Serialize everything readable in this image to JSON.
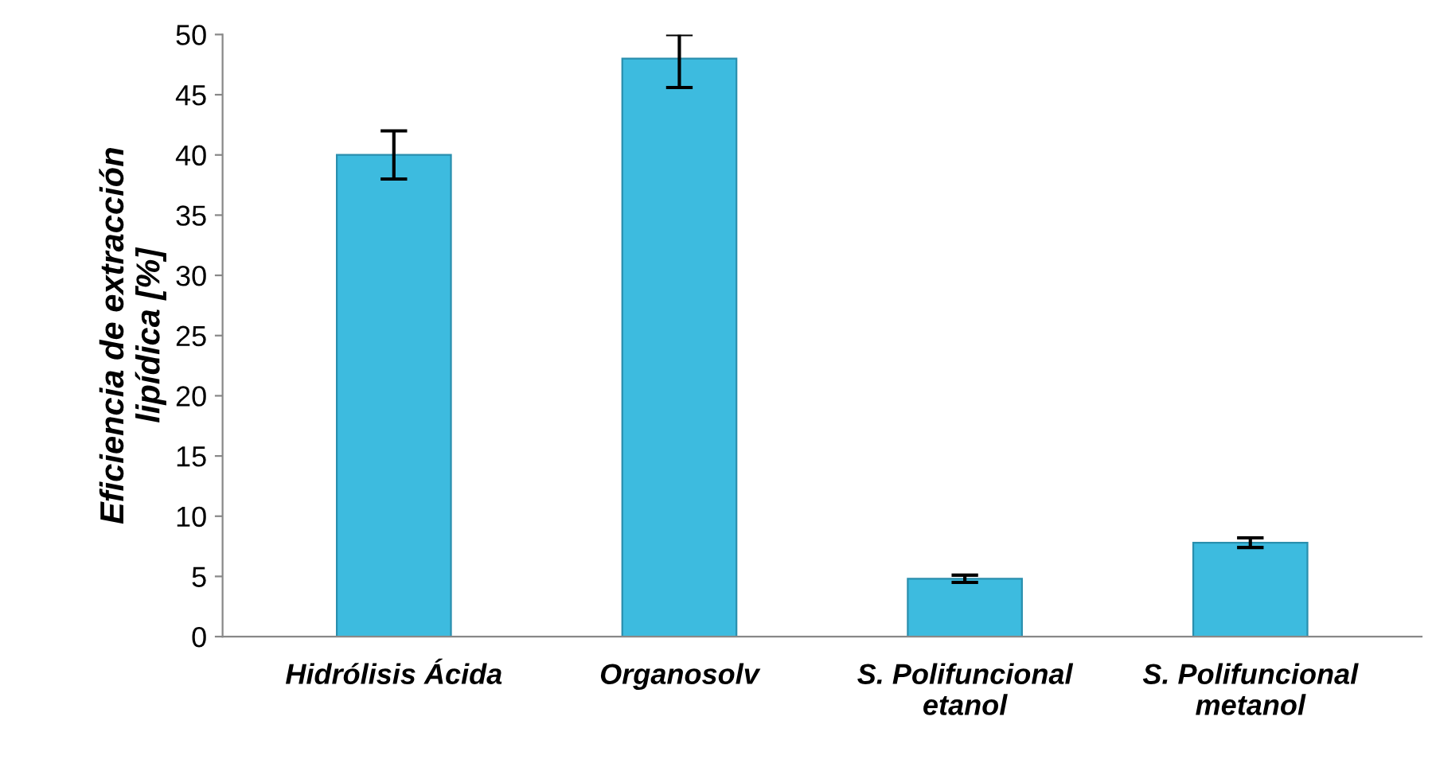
{
  "chart_data": {
    "type": "bar",
    "ylabel": "Eficiencia de extracción\nlipídica [%]",
    "categories": [
      "Hidrólisis Ácida",
      "Organosolv",
      "S. Polifuncional\netanol",
      "S. Polifuncional\nmetanol"
    ],
    "values": [
      40,
      48,
      4.8,
      7.8
    ],
    "errors": [
      2,
      [
        45.6,
        50
      ],
      0.3,
      0.4
    ],
    "color": "#3dbbdf",
    "ylim": [
      0,
      50
    ],
    "yticks": [
      0,
      5,
      10,
      15,
      20,
      25,
      30,
      35,
      40,
      45,
      50
    ],
    "grid": false
  }
}
